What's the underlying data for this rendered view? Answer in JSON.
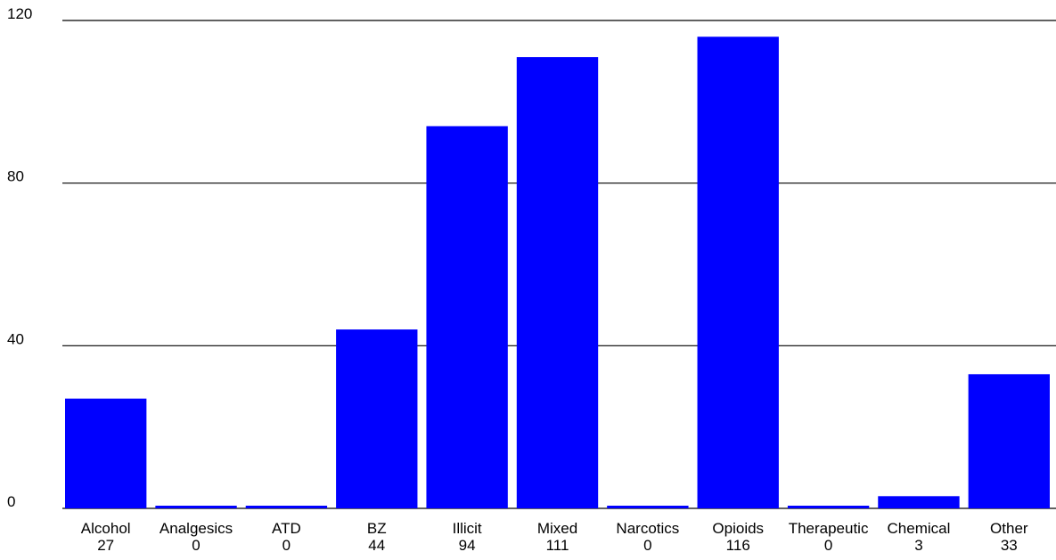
{
  "chart_data": {
    "type": "bar",
    "title": "",
    "xlabel": "",
    "ylabel": "",
    "ylim": [
      0,
      120
    ],
    "yticks": [
      0,
      40,
      80,
      120
    ],
    "grid": true,
    "bar_color": "#0000FF",
    "categories": [
      "Alcohol",
      "Analgesics",
      "ATD",
      "BZ",
      "Illicit",
      "Mixed",
      "Narcotics",
      "Opioids",
      "Therapeutic",
      "Chemical",
      "Other"
    ],
    "values": [
      27,
      0,
      0,
      44,
      94,
      111,
      0,
      116,
      0,
      3,
      33
    ],
    "value_labels": [
      "27",
      "0",
      "0",
      "44",
      "94",
      "111",
      "0",
      "116",
      "0",
      "3",
      "33"
    ]
  }
}
